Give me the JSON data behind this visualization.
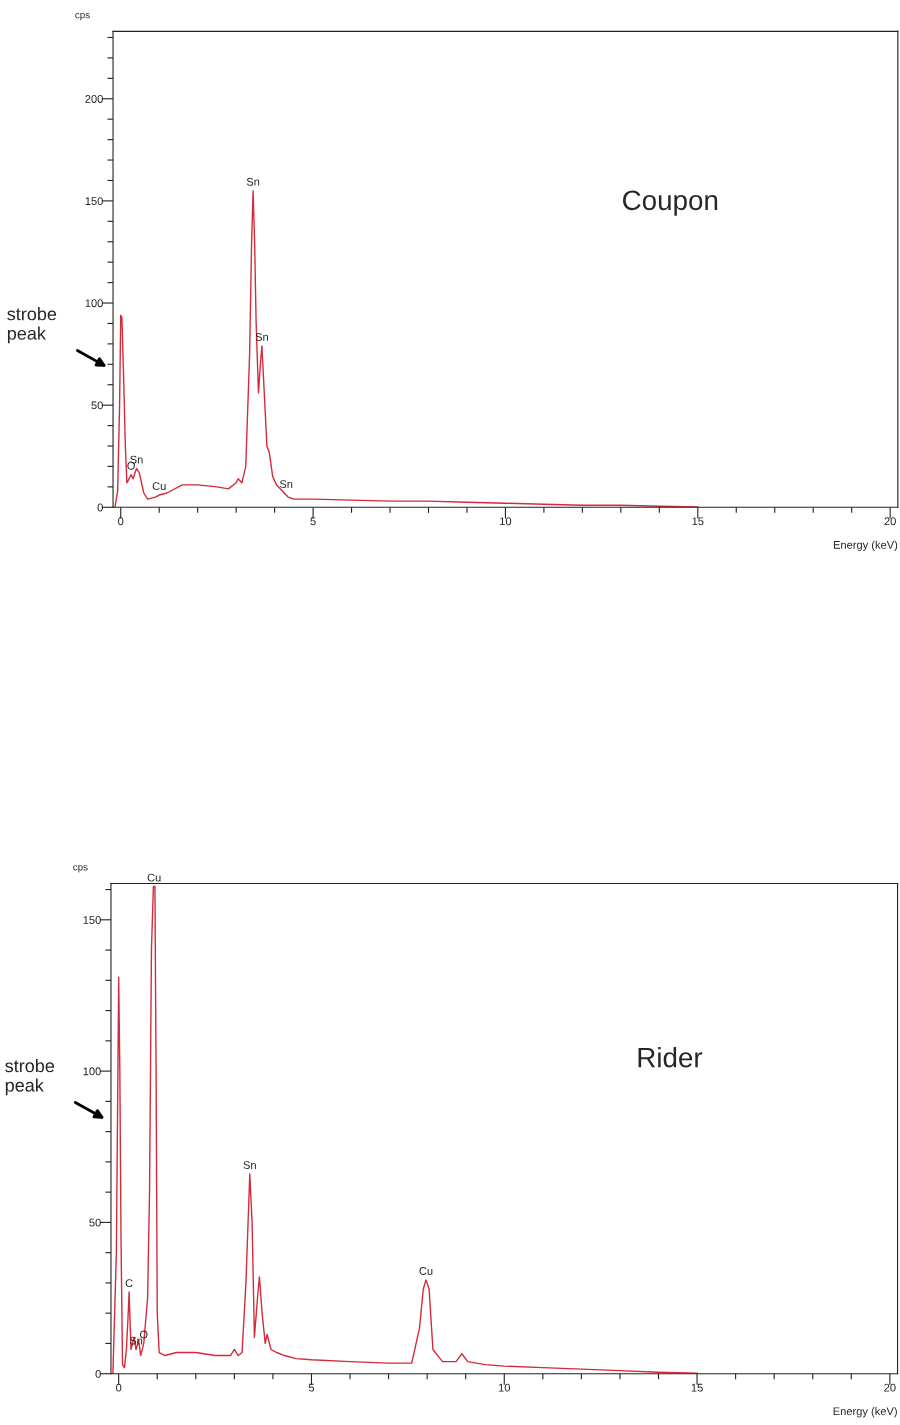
{
  "chart_data": [
    {
      "type": "line",
      "title": "Coupon",
      "xlabel": "Energy (keV)",
      "ylabel": "cps",
      "xlim": [
        -0.2,
        20.2
      ],
      "ylim": [
        0,
        233
      ],
      "xticks": [
        0,
        {
          "value": 1,
          "label": null
        },
        {
          "value": 2,
          "label": null
        },
        {
          "value": 3,
          "label": null
        },
        {
          "value": 4,
          "label": null
        },
        5,
        {
          "value": 6,
          "label": null
        },
        {
          "value": 7,
          "label": null
        },
        {
          "value": 8,
          "label": null
        },
        {
          "value": 9,
          "label": null
        },
        10,
        {
          "value": 11,
          "label": null
        },
        {
          "value": 12,
          "label": null
        },
        {
          "value": 13,
          "label": null
        },
        {
          "value": 14,
          "label": null
        },
        15,
        {
          "value": 16,
          "label": null
        },
        {
          "value": 17,
          "label": null
        },
        {
          "value": 18,
          "label": null
        },
        {
          "value": 19,
          "label": null
        },
        20
      ],
      "yticks": [
        0,
        {
          "value": 10,
          "label": null
        },
        {
          "value": 20,
          "label": null
        },
        {
          "value": 30,
          "label": null
        },
        {
          "value": 40,
          "label": null
        },
        50,
        {
          "value": 60,
          "label": null
        },
        {
          "value": 70,
          "label": null
        },
        {
          "value": 80,
          "label": null
        },
        {
          "value": 90,
          "label": null
        },
        100,
        {
          "value": 110,
          "label": null
        },
        {
          "value": 120,
          "label": null
        },
        {
          "value": 130,
          "label": null
        },
        {
          "value": 140,
          "label": null
        },
        150,
        {
          "value": 160,
          "label": null
        },
        {
          "value": 170,
          "label": null
        },
        {
          "value": 180,
          "label": null
        },
        {
          "value": 190,
          "label": null
        },
        200,
        {
          "value": 210,
          "label": null
        },
        {
          "value": 220,
          "label": null
        },
        {
          "value": 230,
          "label": null
        }
      ],
      "series": [
        {
          "color": "#d42a3a",
          "x": [
            -0.15,
            -0.08,
            -0.03,
            0.0,
            0.03,
            0.08,
            0.12,
            0.16,
            0.22,
            0.27,
            0.32,
            0.41,
            0.48,
            0.6,
            0.7,
            0.9,
            1.0,
            1.2,
            1.6,
            2.0,
            2.5,
            2.8,
            3.0,
            3.05,
            3.15,
            3.25,
            3.35,
            3.4,
            3.44,
            3.48,
            3.52,
            3.58,
            3.63,
            3.67,
            3.72,
            3.8,
            3.86,
            3.95,
            4.05,
            4.15,
            4.25,
            4.35,
            4.5,
            5,
            6,
            7,
            8,
            9,
            10,
            11,
            12,
            13,
            14,
            15
          ],
          "values": [
            0,
            8,
            50,
            94,
            93,
            60,
            30,
            12,
            14,
            16,
            14,
            19,
            17,
            7,
            4,
            5,
            6,
            7,
            11,
            11,
            10,
            9,
            12,
            14,
            12,
            20,
            75,
            128,
            155,
            130,
            90,
            56,
            70,
            79,
            60,
            30,
            27,
            15,
            11,
            9,
            7,
            5,
            4,
            4,
            3.5,
            3,
            3,
            2.5,
            2,
            1.5,
            1,
            1,
            0.5,
            0.2
          ]
        }
      ],
      "annotations": [
        {
          "text": "Sn",
          "x": 3.44,
          "y": 155
        },
        {
          "text": "Sn",
          "x": 3.67,
          "y": 79
        },
        {
          "text": "Sn",
          "x": 0.41,
          "y": 19
        },
        {
          "text": "O",
          "x": 0.27,
          "y": 16
        },
        {
          "text": "Cu",
          "x": 1.0,
          "y": 6
        },
        {
          "text": "Sn",
          "x": 4.3,
          "y": 7
        },
        "strobe peak"
      ]
    },
    {
      "type": "line",
      "title": "Rider",
      "xlabel": "Energy (keV)",
      "ylabel": "cps",
      "xlim": [
        -0.2,
        20.2
      ],
      "ylim": [
        0,
        162
      ],
      "xticks": [
        0,
        {
          "value": 1,
          "label": null
        },
        {
          "value": 2,
          "label": null
        },
        {
          "value": 3,
          "label": null
        },
        {
          "value": 4,
          "label": null
        },
        5,
        {
          "value": 6,
          "label": null
        },
        {
          "value": 7,
          "label": null
        },
        {
          "value": 8,
          "label": null
        },
        {
          "value": 9,
          "label": null
        },
        10,
        {
          "value": 11,
          "label": null
        },
        {
          "value": 12,
          "label": null
        },
        {
          "value": 13,
          "label": null
        },
        {
          "value": 14,
          "label": null
        },
        15,
        {
          "value": 16,
          "label": null
        },
        {
          "value": 17,
          "label": null
        },
        {
          "value": 18,
          "label": null
        },
        {
          "value": 19,
          "label": null
        },
        20
      ],
      "yticks": [
        0,
        {
          "value": 10,
          "label": null
        },
        {
          "value": 20,
          "label": null
        },
        {
          "value": 30,
          "label": null
        },
        {
          "value": 40,
          "label": null
        },
        50,
        {
          "value": 60,
          "label": null
        },
        {
          "value": 70,
          "label": null
        },
        {
          "value": 80,
          "label": null
        },
        {
          "value": 90,
          "label": null
        },
        100,
        {
          "value": 110,
          "label": null
        },
        {
          "value": 120,
          "label": null
        },
        {
          "value": 130,
          "label": null
        },
        {
          "value": 140,
          "label": null
        },
        150,
        {
          "value": 160,
          "label": null
        }
      ],
      "series": [
        {
          "color": "#d42a3a",
          "x": [
            -0.15,
            -0.06,
            -0.02,
            0.0,
            0.03,
            0.06,
            0.1,
            0.15,
            0.2,
            0.24,
            0.27,
            0.32,
            0.4,
            0.45,
            0.52,
            0.57,
            0.65,
            0.75,
            0.8,
            0.85,
            0.9,
            0.94,
            0.97,
            1.0,
            1.05,
            1.2,
            1.5,
            2.0,
            2.5,
            2.9,
            3.0,
            3.1,
            3.2,
            3.3,
            3.4,
            3.46,
            3.52,
            3.6,
            3.65,
            3.72,
            3.8,
            3.85,
            3.95,
            4.1,
            4.3,
            4.6,
            5,
            6,
            7,
            7.6,
            7.8,
            7.9,
            7.97,
            8.05,
            8.15,
            8.4,
            8.75,
            8.9,
            9.05,
            9.5,
            10,
            11,
            12,
            13,
            14,
            15
          ],
          "values": [
            0,
            40,
            100,
            131,
            100,
            45,
            3,
            2,
            8,
            18,
            27,
            8,
            12,
            8,
            11,
            6,
            10,
            25,
            60,
            140,
            161,
            161,
            100,
            20,
            7,
            6,
            7,
            7,
            6,
            6,
            8,
            6,
            7,
            30,
            66,
            50,
            12,
            25,
            32,
            20,
            10,
            13,
            8,
            7,
            6,
            5,
            4.6,
            4,
            3.5,
            3.5,
            15,
            28,
            31,
            28,
            8,
            4,
            4,
            6.6,
            4,
            3,
            2.5,
            2,
            1.5,
            1,
            0.5,
            0.2
          ]
        }
      ],
      "annotations": [
        {
          "text": "Cu",
          "x": 0.92,
          "y": 161
        },
        {
          "text": "Sn",
          "x": 3.4,
          "y": 66
        },
        {
          "text": "Cu",
          "x": 7.97,
          "y": 31
        },
        {
          "text": "C",
          "x": 0.27,
          "y": 27
        },
        {
          "text": "O",
          "x": 0.65,
          "y": 10
        },
        {
          "text": "Sn",
          "x": 0.45,
          "y": 8
        },
        "strobe peak"
      ]
    }
  ]
}
